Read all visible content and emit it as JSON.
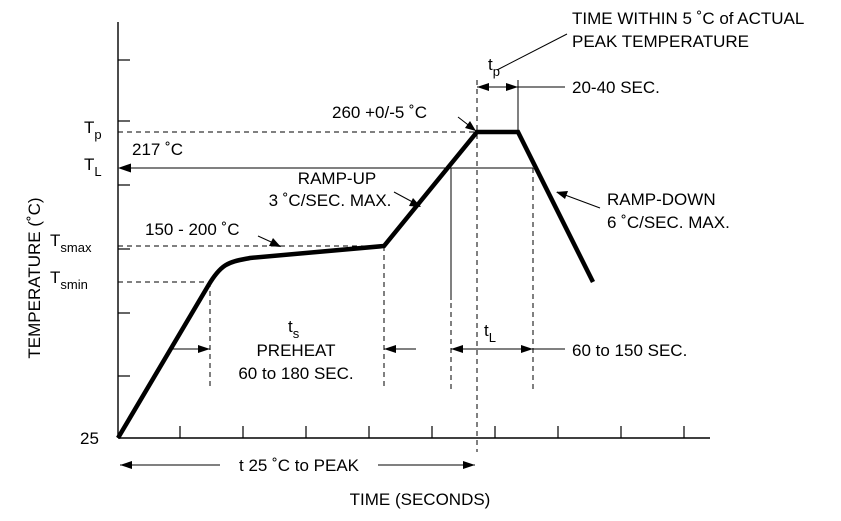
{
  "axes": {
    "y_label": "TEMPERATURE (˚C)",
    "x_label": "TIME (SECONDS)",
    "y_origin": "25"
  },
  "levels": {
    "tp_main": "T",
    "tp_sub": "p",
    "tl_main": "T",
    "tl_sub": "L",
    "tsmax_main": "T",
    "tsmax_sub": "smax",
    "tsmin_main": "T",
    "tsmin_sub": "smin"
  },
  "annotations": {
    "peak_window_line1": "TIME WITHIN 5 ˚C of ACTUAL",
    "peak_window_line2": "PEAK TEMPERATURE",
    "tp_time_main": "t",
    "tp_time_sub": "p",
    "tp_duration": "20-40 SEC.",
    "peak_temp": "260 +0/-5 ˚C",
    "liquidus_temp": "217 ˚C",
    "ramp_up_line1": "RAMP-UP",
    "ramp_up_line2": "3 ˚C/SEC. MAX.",
    "ramp_down_line1": "RAMP-DOWN",
    "ramp_down_line2": "6 ˚C/SEC. MAX.",
    "soak_range": "150 - 200 ˚C",
    "ts_main": "t",
    "ts_sub": "s",
    "preheat_line1": "PREHEAT",
    "preheat_line2": "60 to 180 SEC.",
    "tl_time_main": "t",
    "tl_time_sub": "L",
    "tl_duration": "60 to 150 SEC.",
    "total_time": "t 25 ˚C to PEAK"
  }
}
